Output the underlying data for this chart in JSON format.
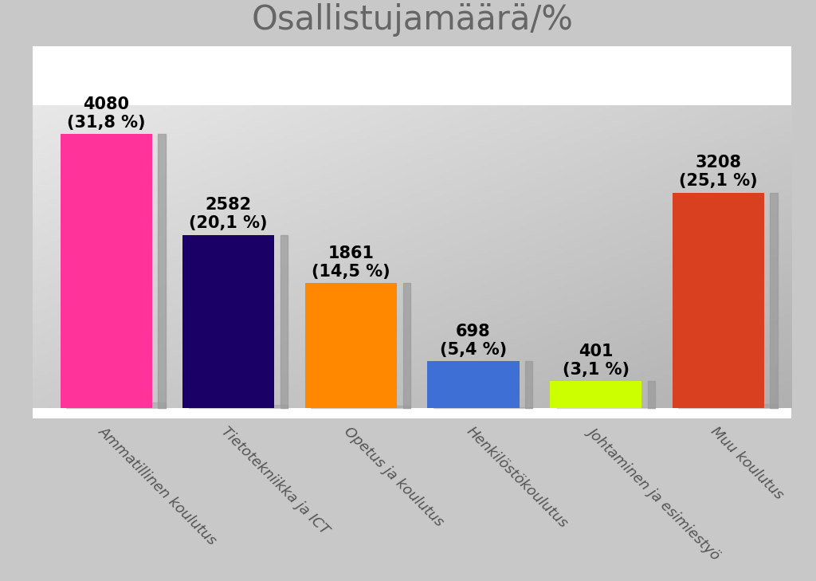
{
  "title": "Osallistujamäärä/%",
  "categories": [
    "Ammatillinen koulutus",
    "Tietotekniikka ja ICT",
    "Opetus ja koulutus",
    "Henkilöstökoulutus",
    "Johtaminen ja esimiestyö",
    "Muu koulutus"
  ],
  "values": [
    4080,
    2582,
    1861,
    698,
    401,
    3208
  ],
  "percentages": [
    "31,8 %",
    "20,1 %",
    "14,5 %",
    "5,4 %",
    "3,1 %",
    "25,1 %"
  ],
  "bar_colors": [
    "#FF3399",
    "#1A0066",
    "#FF8800",
    "#3D6FD4",
    "#CCFF00",
    "#D94020"
  ],
  "shadow_color": "#AAAAAA",
  "title_fontsize": 30,
  "label_fontsize": 13,
  "annotation_fontsize": 15,
  "bg_top_left": "#E8E8E8",
  "bg_bottom_right": "#B0B0B0"
}
